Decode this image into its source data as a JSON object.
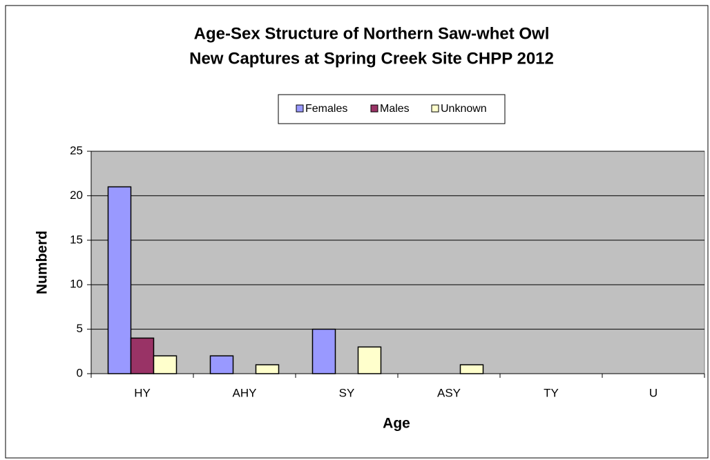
{
  "chart_data": {
    "type": "bar",
    "title": [
      "Age-Sex Structure of Northern Saw-whet Owl",
      "New Captures at Spring Creek Site CHPP 2012"
    ],
    "x_label": "Age",
    "y_label": "Numberd",
    "categories": [
      "HY",
      "AHY",
      "SY",
      "ASY",
      "TY",
      "U"
    ],
    "series": [
      {
        "name": "Females",
        "color": "#9999ff",
        "values": [
          21,
          2,
          5,
          0,
          0,
          0
        ]
      },
      {
        "name": "Males",
        "color": "#993366",
        "values": [
          4,
          0,
          0,
          0,
          0,
          0
        ]
      },
      {
        "name": "Unknown",
        "color": "#ffffcc",
        "values": [
          2,
          1,
          3,
          1,
          0,
          0
        ]
      }
    ],
    "ylim": [
      0,
      25
    ],
    "yticks": [
      0,
      5,
      10,
      15,
      20,
      25
    ],
    "grid": true,
    "legend": "top"
  }
}
